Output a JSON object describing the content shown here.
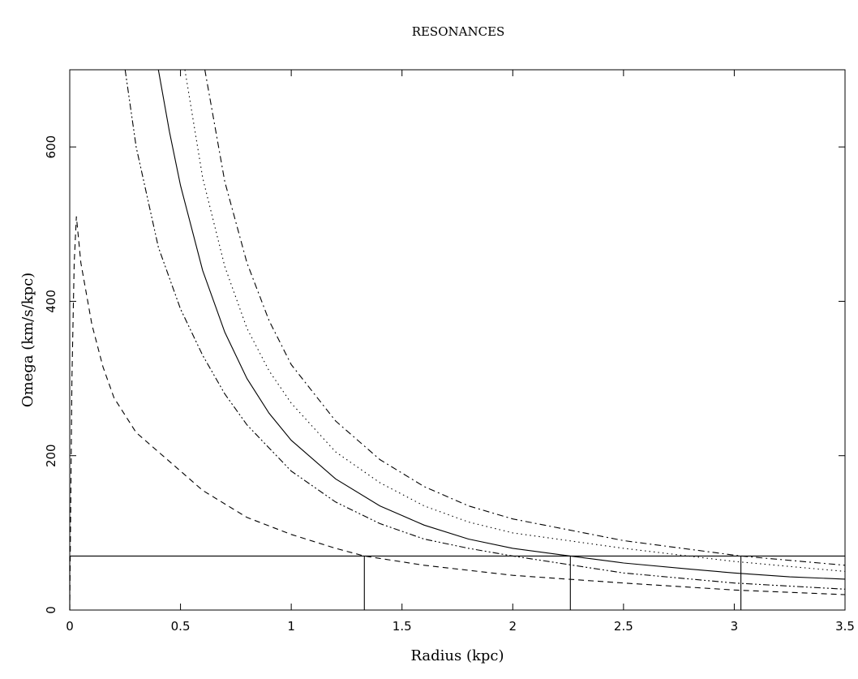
{
  "chart_data": {
    "type": "line",
    "title": "RESONANCES",
    "xlabel": "Radius (kpc)",
    "ylabel": "Omega (km/s/kpc)",
    "xlim": [
      0,
      3.5
    ],
    "ylim": [
      0,
      700
    ],
    "xticks": [
      0,
      0.5,
      1,
      1.5,
      2,
      2.5,
      3,
      3.5
    ],
    "xtick_labels": [
      "0",
      "0.5",
      "1",
      "1.5",
      "2",
      "2.5",
      "3",
      "3.5"
    ],
    "yticks": [
      0,
      200,
      400,
      600
    ],
    "ytick_labels": [
      "0",
      "200",
      "400",
      "600"
    ],
    "grid": false,
    "legend": "none",
    "series": [
      {
        "style": "solid",
        "x": [
          0.4,
          0.45,
          0.5,
          0.6,
          0.7,
          0.8,
          0.9,
          1.0,
          1.2,
          1.4,
          1.6,
          1.8,
          2.0,
          2.26,
          2.5,
          2.8,
          3.0,
          3.25,
          3.5
        ],
        "y": [
          700,
          620,
          550,
          440,
          360,
          300,
          255,
          220,
          170,
          135,
          110,
          92,
          80,
          70,
          61,
          53,
          48,
          43,
          40
        ]
      },
      {
        "style": "dotted",
        "x": [
          0.52,
          0.6,
          0.7,
          0.8,
          0.9,
          1.0,
          1.2,
          1.4,
          1.6,
          1.8,
          2.0,
          2.5,
          3.0,
          3.5
        ],
        "y": [
          700,
          560,
          445,
          365,
          310,
          268,
          205,
          165,
          135,
          114,
          100,
          80,
          63,
          50
        ]
      },
      {
        "style": "dash-dot",
        "x": [
          0.61,
          0.7,
          0.8,
          0.9,
          1.0,
          1.2,
          1.4,
          1.6,
          1.8,
          2.0,
          2.5,
          3.03,
          3.5
        ],
        "y": [
          700,
          555,
          450,
          375,
          318,
          245,
          195,
          160,
          135,
          118,
          90,
          70,
          58
        ]
      },
      {
        "style": "dash-dot-dot",
        "x": [
          0.25,
          0.3,
          0.4,
          0.5,
          0.6,
          0.7,
          0.8,
          1.0,
          1.2,
          1.4,
          1.6,
          1.8,
          2.0,
          2.5,
          3.0,
          3.5
        ],
        "y": [
          700,
          600,
          470,
          390,
          330,
          280,
          240,
          180,
          140,
          112,
          92,
          80,
          70,
          48,
          35,
          27
        ]
      },
      {
        "style": "dashed",
        "x": [
          0.0,
          0.01,
          0.02,
          0.03,
          0.05,
          0.1,
          0.15,
          0.2,
          0.3,
          0.4,
          0.5,
          0.6,
          0.8,
          1.0,
          1.2,
          1.33,
          1.6,
          2.0,
          2.5,
          3.0,
          3.5
        ],
        "y": [
          0,
          300,
          450,
          510,
          450,
          370,
          315,
          275,
          230,
          205,
          180,
          155,
          120,
          98,
          80,
          70,
          58,
          45,
          35,
          26,
          20
        ]
      }
    ],
    "annotations": {
      "pattern_speed": 70,
      "resonance_radii": [
        0.0,
        1.33,
        2.26,
        3.03
      ]
    }
  }
}
